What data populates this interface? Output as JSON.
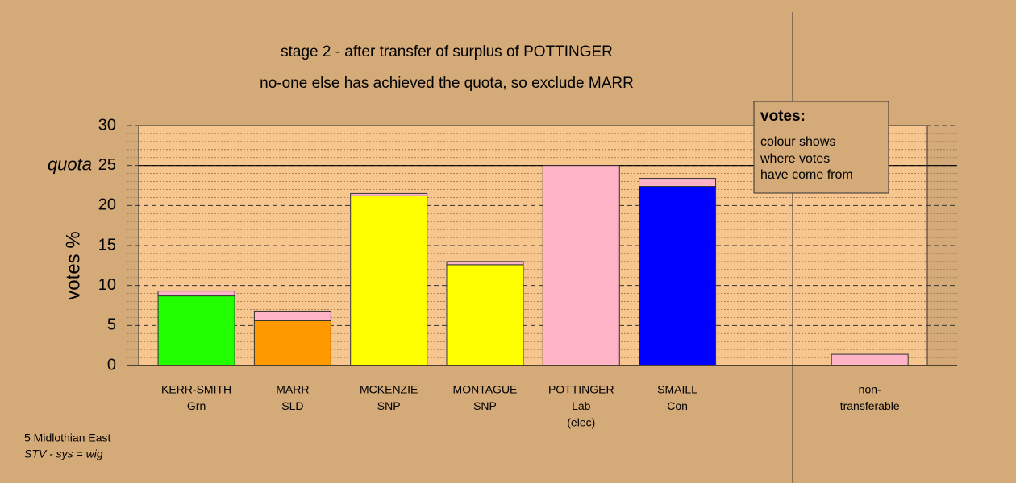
{
  "chart_data": {
    "type": "stacked-bar",
    "title": "stage 2 - after transfer of surplus of POTTINGER",
    "subtitle": "no-one else has achieved the quota, so exclude MARR",
    "y_label": "votes %",
    "quota_label": "quota",
    "quota": 25,
    "categories": [
      [
        "KERR-SMITH",
        "Grn"
      ],
      [
        "MARR",
        "SLD"
      ],
      [
        "MCKENZIE",
        "SNP"
      ],
      [
        "MONTAGUE",
        "SNP"
      ],
      [
        "POTTINGER",
        "Lab",
        "(elec)"
      ],
      [
        "SMAILL",
        "Con"
      ],
      null,
      [
        "non-",
        "transferable"
      ]
    ],
    "series": [
      {
        "colors": [
          "#22ff00",
          "#ff9900",
          "#ffff00",
          "#ffff00",
          "#ffb3c6",
          "#0000ff",
          null,
          null
        ],
        "values": [
          8.7,
          5.6,
          21.2,
          12.6,
          25,
          22.4,
          null,
          null
        ]
      },
      {
        "color": "#ffb3c6",
        "values": [
          0.6,
          1.2,
          0.3,
          0.4,
          null,
          1.0,
          null,
          1.4
        ]
      }
    ],
    "ylim": [
      0,
      30
    ],
    "yticks": [
      0,
      5,
      10,
      15,
      20,
      25,
      30
    ],
    "yminorticks": [
      1,
      2,
      3,
      4,
      6,
      7,
      8,
      9,
      11,
      12,
      13,
      14,
      16,
      17,
      18,
      19,
      21,
      22,
      23,
      24,
      26,
      27,
      28,
      29
    ],
    "grid": true,
    "note": {
      "title": "votes:",
      "lines": [
        "colour shows",
        "where votes",
        "have come from"
      ]
    },
    "footer": [
      "5 Midlothian East",
      "STV - sys = wig"
    ]
  }
}
